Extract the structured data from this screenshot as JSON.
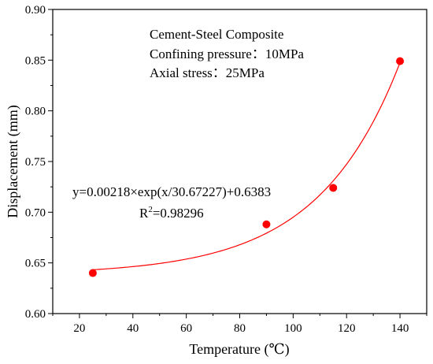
{
  "chart_data": {
    "type": "scatter",
    "xlabel": "Temperature (℃)",
    "ylabel": "Displacement (mm)",
    "xlim": [
      10,
      150
    ],
    "ylim": [
      0.6,
      0.9
    ],
    "x_ticks": [
      "20",
      "40",
      "60",
      "80",
      "100",
      "120",
      "140"
    ],
    "y_ticks": [
      "0.60",
      "0.65",
      "0.70",
      "0.75",
      "0.80",
      "0.85",
      "0.90"
    ],
    "grid": false,
    "series": [
      {
        "points": [
          {
            "x": 25,
            "y": 0.64
          },
          {
            "x": 90,
            "y": 0.688
          },
          {
            "x": 115,
            "y": 0.724
          },
          {
            "x": 140,
            "y": 0.849
          }
        ],
        "color": "#ff0000"
      }
    ],
    "fit": {
      "equation": "y=0.00218×exp(x/30.67227)+0.6383",
      "r2_label": "R",
      "r2_sup": "2",
      "r2_value": "=0.98296",
      "a": 0.00218,
      "t": 30.67227,
      "y0": 0.6383,
      "x_range": [
        25,
        140
      ],
      "color": "#ff0000"
    },
    "annotations": [
      "Cement-Steel Composite",
      "Confining pressure：10MPa",
      "Axial stress：25MPa"
    ]
  }
}
